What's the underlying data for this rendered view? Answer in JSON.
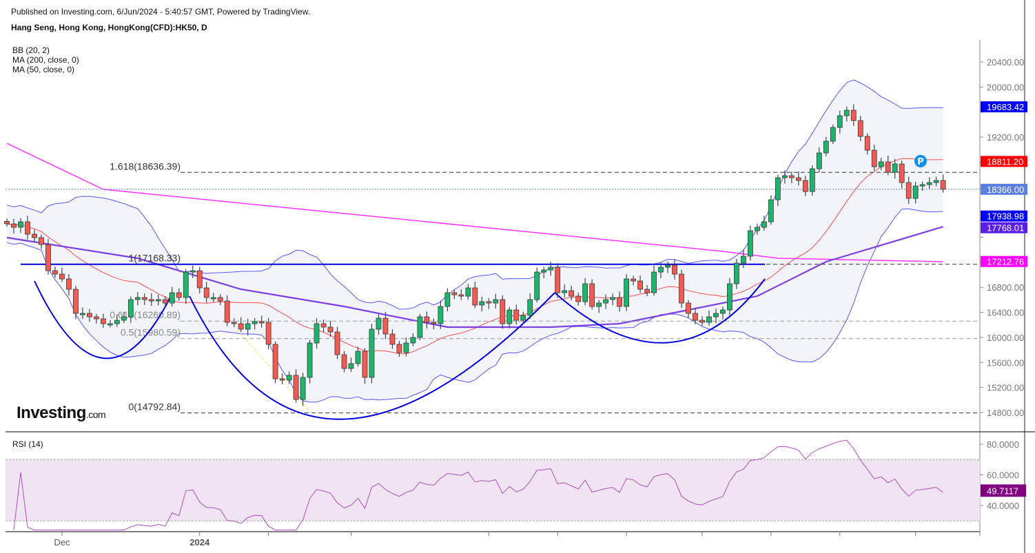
{
  "header": {
    "published": "Published on Investing.com, 6/Jun/2024 - 5:40:57 GMT, Powered by TradingView.",
    "symbol": "Hang Seng, Hong Kong, HongKong(CFD):HK50, D"
  },
  "legend": [
    "BB (20, 2)",
    "MA (200, close, 0)",
    "MA (50, close, 0)"
  ],
  "rsi_label": "RSI (14)",
  "logo": {
    "main": "Investing",
    "suffix": ".com"
  },
  "marker_label": "P",
  "colors": {
    "up": "#1db56b",
    "down": "#f25a52",
    "bb": "#5555ff",
    "bb_mid": "#ff4d4d",
    "ma200": "#ff33ff",
    "ma50": "#7b3fe4",
    "rsi": "#b04cc0",
    "rsi_band": "#f1e4f2",
    "pattern": "#0000e0"
  },
  "chart_data": {
    "type": "candlestick",
    "title": "Hang Seng, Hong Kong, HongKong(CFD):HK50, D",
    "x_labels": [
      {
        "index": 8,
        "label": "Dec"
      },
      {
        "index": 28,
        "label": "2024"
      }
    ],
    "x_ticks": [
      8,
      28,
      38,
      50,
      70,
      80,
      90,
      101,
      111,
      121,
      132
    ],
    "price_ticks": [
      14800,
      15200,
      15600,
      16000,
      16400,
      16800,
      17200,
      17600,
      18000,
      18400,
      18800,
      19200,
      19600,
      20000,
      20400
    ],
    "price_range": [
      14500,
      20800
    ],
    "closes": [
      17814,
      17759,
      17847,
      17649,
      17594,
      17484,
      17066,
      17011,
      16934,
      16769,
      16384,
      16384,
      16329,
      16296,
      16219,
      16219,
      16274,
      16329,
      16604,
      16637,
      16604,
      16582,
      16604,
      16549,
      16714,
      16637,
      17044,
      17066,
      16791,
      16637,
      16637,
      16582,
      16241,
      16219,
      16131,
      16219,
      16252,
      16241,
      15889,
      15339,
      15317,
      15394,
      15009,
      15361,
      15911,
      16219,
      16164,
      16087,
      15724,
      15504,
      15581,
      15779,
      15361,
      16131,
      16307,
      16054,
      15889,
      15757,
      15911,
      15999,
      16329,
      16241,
      16219,
      16494,
      16714,
      16681,
      16659,
      16791,
      16516,
      16571,
      16549,
      16604,
      16219,
      16439,
      16274,
      16351,
      16604,
      17044,
      17077,
      17121,
      16714,
      16747,
      16659,
      16571,
      16857,
      16494,
      16549,
      16604,
      16637,
      16494,
      16934,
      16901,
      16769,
      16714,
      17044,
      17121,
      17154,
      17011,
      16549,
      16384,
      16274,
      16241,
      16329,
      16384,
      16439,
      16857,
      17187,
      17297,
      17704,
      17759,
      17847,
      18199,
      18551,
      18584,
      18551,
      18507,
      18331,
      18694,
      18947,
      19134,
      19354,
      19541,
      19629,
      19464,
      19211,
      18991,
      18727,
      18804,
      18639,
      18771,
      18474,
      18221,
      18419,
      18441,
      18474,
      18507,
      18366
    ],
    "ma200": [
      [
        0,
        19100
      ],
      [
        14,
        18365
      ],
      [
        59,
        17870
      ],
      [
        104,
        17375
      ],
      [
        112,
        17264
      ],
      [
        136,
        17209
      ]
    ],
    "ma50": [
      [
        0,
        17594
      ],
      [
        19,
        17264
      ],
      [
        34,
        16769
      ],
      [
        49,
        16494
      ],
      [
        64,
        16164
      ],
      [
        79,
        16164
      ],
      [
        89,
        16219
      ],
      [
        99,
        16439
      ],
      [
        109,
        16659
      ],
      [
        119,
        17209
      ],
      [
        136,
        17768
      ]
    ],
    "last_values": [
      {
        "label": "19683.42",
        "value": 19683.42,
        "color": "#0000ff"
      },
      {
        "label": "18811.20",
        "value": 18811.2,
        "color": "#ff0000"
      },
      {
        "label": "18366.00",
        "value": 18366.0,
        "color": "#5b7fe0"
      },
      {
        "label": "17938.98",
        "value": 17938.98,
        "color": "#0000ff"
      },
      {
        "label": "17768.01",
        "value": 17768.01,
        "color": "#5a1ee6"
      },
      {
        "label": "17212.76",
        "value": 17212.76,
        "color": "#ff00ff"
      }
    ],
    "fib_levels": [
      {
        "label": "1.618(18636.39)",
        "value": 18636.39,
        "style": "dark"
      },
      {
        "label": "1(17168.33)",
        "value": 17168.33,
        "style": "blue"
      },
      {
        "label": "0.618(16260.89)",
        "value": 16260.89,
        "style": "grey"
      },
      {
        "label": "0.5(15980.59)",
        "value": 15980.59,
        "style": "grey"
      },
      {
        "label": "0(14792.84)",
        "value": 14792.84,
        "style": "dark"
      }
    ],
    "rsi": {
      "period": 14,
      "ticks": [
        40,
        60,
        80
      ],
      "tick_labels": [
        "40.0000",
        "60.0000",
        "80.0000"
      ],
      "overbought": 70,
      "oversold": 30,
      "range": [
        24,
        86
      ],
      "last": {
        "label": "49.7117",
        "value": 49.7117,
        "color": "#800080"
      }
    }
  }
}
